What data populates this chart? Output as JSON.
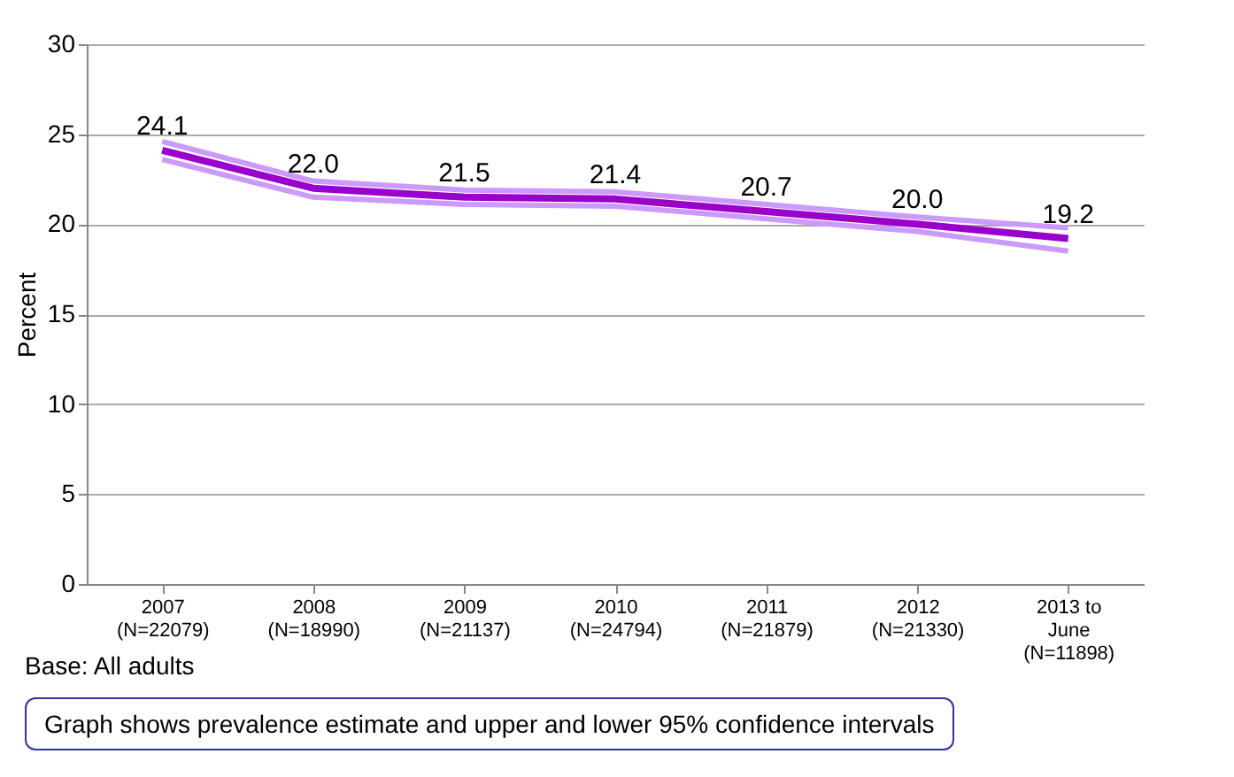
{
  "chart_data": {
    "type": "line",
    "ylabel": "Percent",
    "categories": [
      "2007\n(N=22079)",
      "2008\n(N=18990)",
      "2009\n(N=21137)",
      "2010\n(N=24794)",
      "2011\n(N=21879)",
      "2012\n(N=21330)",
      "2013 to\nJune\n(N=11898)"
    ],
    "series": [
      {
        "color": "#cc99ff",
        "values": [
          24.6,
          22.4,
          21.9,
          21.8,
          21.1,
          20.4,
          19.8
        ]
      },
      {
        "color": "#cc99ff",
        "values": [
          23.6,
          21.5,
          21.1,
          21.0,
          20.3,
          19.6,
          18.5
        ]
      },
      {
        "color": "#9900cc",
        "values": [
          24.1,
          22.0,
          21.5,
          21.4,
          20.7,
          20.0,
          19.2
        ],
        "value_labels": [
          "24.1",
          "22.0",
          "21.5",
          "21.4",
          "20.7",
          "20.0",
          "19.2"
        ]
      }
    ],
    "ylim": [
      0,
      30
    ],
    "yticks": [
      0,
      5,
      10,
      15,
      20,
      25,
      30
    ],
    "grid": "y",
    "annotations": [
      "Base: All adults",
      "Graph shows prevalence estimate and upper and lower 95% confidence intervals"
    ]
  }
}
